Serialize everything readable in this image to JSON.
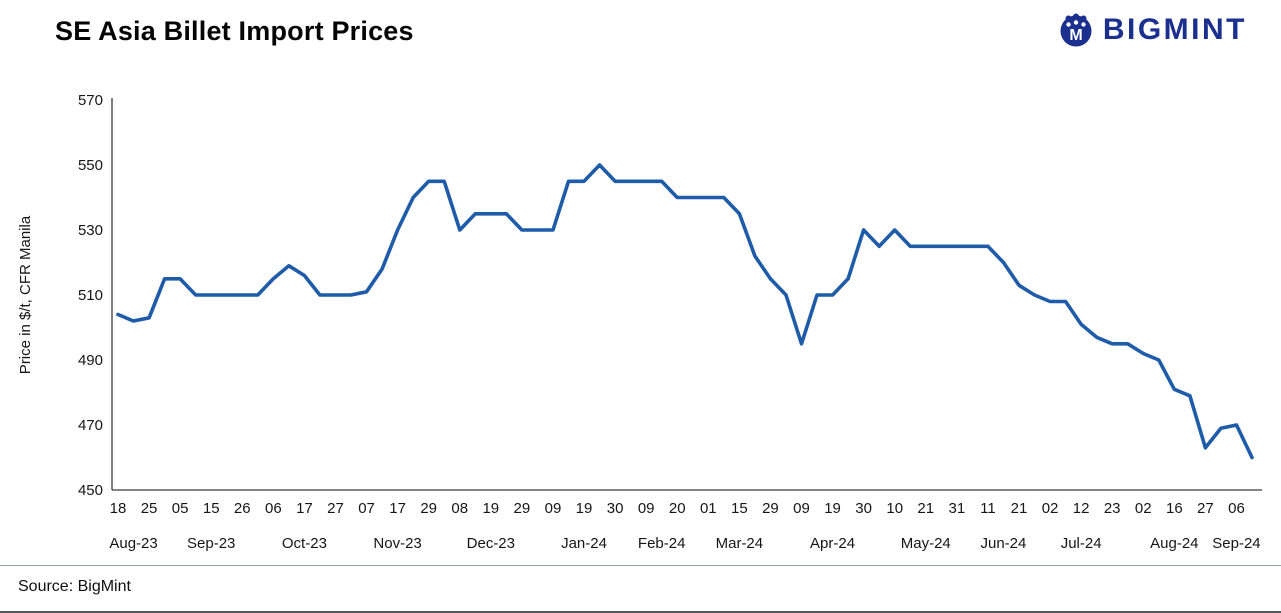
{
  "header": {
    "title": "SE Asia Billet Import Prices",
    "brand": "BIGMINT",
    "brand_color": "#1b2f8e"
  },
  "footer": {
    "source": "Source: BigMint"
  },
  "chart_data": {
    "type": "line",
    "title": "SE Asia Billet Import Prices",
    "xlabel": "",
    "ylabel": "Price in $/t, CFR Manila",
    "ylim": [
      450,
      570
    ],
    "yticks": [
      450,
      470,
      490,
      510,
      530,
      550,
      570
    ],
    "grid": false,
    "legend": "none",
    "line_color": "#1e5caa",
    "axis_color": "#3c3c3c",
    "tick_every": 2,
    "x_tick_days": [
      "18",
      "25",
      "05",
      "15",
      "26",
      "06",
      "17",
      "27",
      "07",
      "17",
      "29",
      "08",
      "19",
      "29",
      "09",
      "19",
      "30",
      "09",
      "20",
      "01",
      "15",
      "29",
      "09",
      "19",
      "30",
      "10",
      "21",
      "31",
      "11",
      "21",
      "02",
      "12",
      "23",
      "02",
      "16",
      "27",
      "06"
    ],
    "months": [
      {
        "label": "Aug-23",
        "tick_count": 2
      },
      {
        "label": "Sep-23",
        "tick_count": 3
      },
      {
        "label": "Oct-23",
        "tick_count": 3
      },
      {
        "label": "Nov-23",
        "tick_count": 3
      },
      {
        "label": "Dec-23",
        "tick_count": 3
      },
      {
        "label": "Jan-24",
        "tick_count": 3
      },
      {
        "label": "Feb-24",
        "tick_count": 2
      },
      {
        "label": "Mar-24",
        "tick_count": 3
      },
      {
        "label": "Apr-24",
        "tick_count": 3
      },
      {
        "label": "May-24",
        "tick_count": 3
      },
      {
        "label": "Jun-24",
        "tick_count": 2
      },
      {
        "label": "Jul-24",
        "tick_count": 3
      },
      {
        "label": "Aug-24",
        "tick_count": 3
      },
      {
        "label": "Sep-24",
        "tick_count": 1
      }
    ],
    "values": [
      504,
      502,
      503,
      515,
      515,
      510,
      510,
      510,
      510,
      510,
      515,
      519,
      516,
      510,
      510,
      510,
      511,
      518,
      530,
      540,
      545,
      545,
      530,
      535,
      535,
      535,
      530,
      530,
      530,
      545,
      545,
      550,
      545,
      545,
      545,
      545,
      540,
      540,
      540,
      540,
      535,
      522,
      515,
      510,
      495,
      510,
      510,
      515,
      530,
      525,
      530,
      525,
      525,
      525,
      525,
      525,
      525,
      520,
      513,
      510,
      508,
      508,
      501,
      497,
      495,
      495,
      492,
      490,
      481,
      479,
      463,
      469,
      470,
      460
    ]
  }
}
